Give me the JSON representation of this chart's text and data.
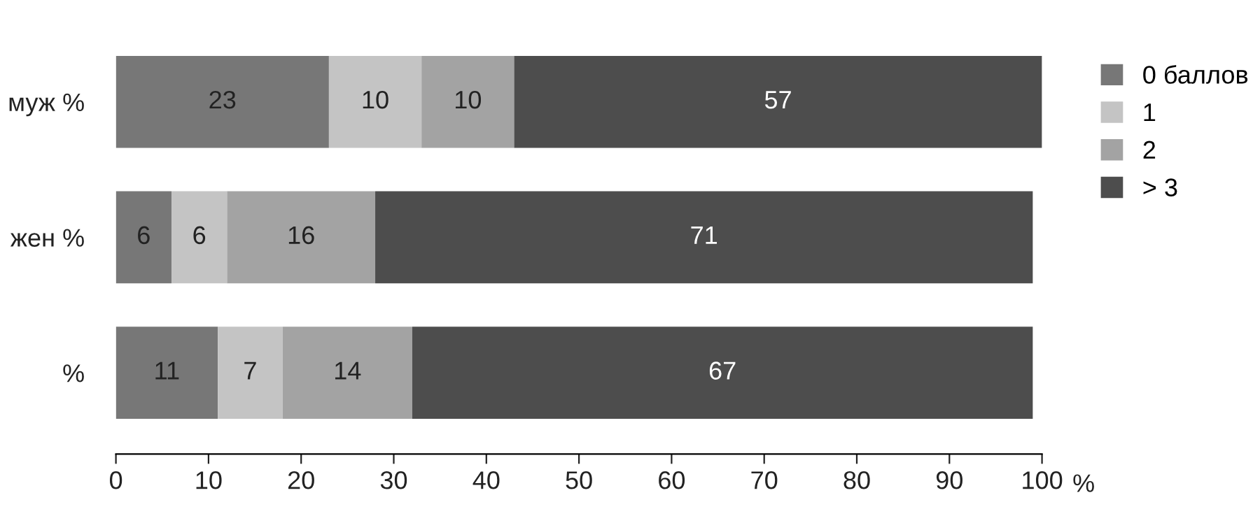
{
  "chart_data": {
    "type": "bar",
    "orientation": "horizontal",
    "stacked": true,
    "categories": [
      "муж %",
      "жен %",
      "%"
    ],
    "series": [
      {
        "name": "0 баллов",
        "color": "#777777",
        "values": [
          23,
          6,
          11
        ]
      },
      {
        "name": "1",
        "color": "#c4c4c4",
        "values": [
          10,
          6,
          7
        ]
      },
      {
        "name": "2",
        "color": "#a3a3a3",
        "values": [
          10,
          16,
          14
        ]
      },
      {
        "name": "> 3",
        "color": "#4d4d4d",
        "values": [
          57,
          71,
          67
        ]
      }
    ],
    "xlabel": "%",
    "xlim": [
      0,
      100
    ],
    "xticks": [
      0,
      10,
      20,
      30,
      40,
      50,
      60,
      70,
      80,
      90,
      100
    ],
    "data_labels": true,
    "legend": "right",
    "grid": false
  }
}
